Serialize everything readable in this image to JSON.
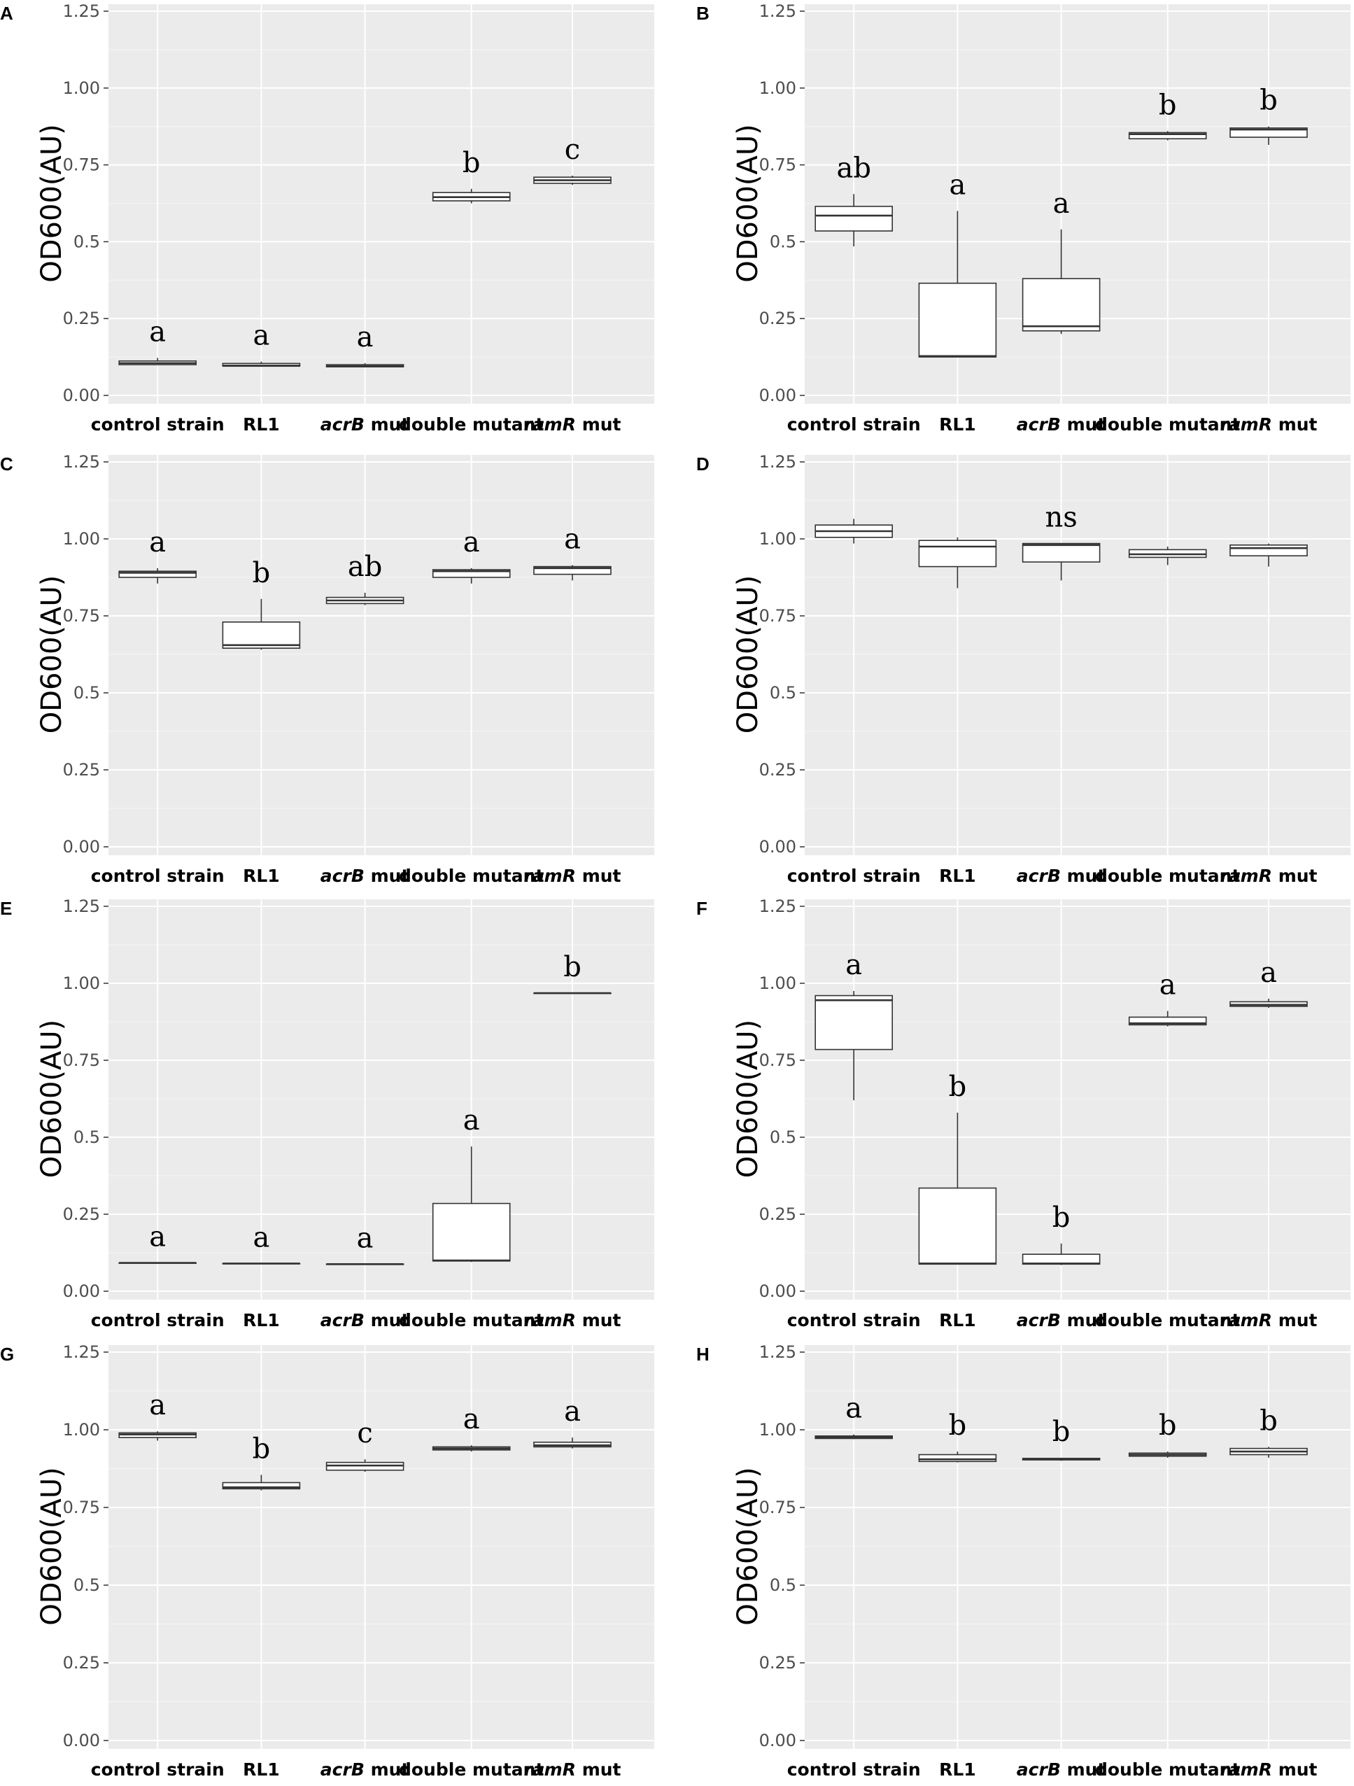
{
  "figure": {
    "ylabel": "OD600(AU)",
    "yticks": [
      "0.00",
      "0.25",
      "0.5",
      "0.75",
      "1.00",
      "1.25"
    ],
    "ylim": [
      0,
      1.25
    ],
    "category_labels": [
      {
        "main": "control strain",
        "italic": ""
      },
      {
        "main": "RL1",
        "italic": ""
      },
      {
        "main": " mut",
        "italic": "acrB"
      },
      {
        "main": "double mutant",
        "italic": ""
      },
      {
        "main": " mut",
        "italic": "ramR"
      }
    ]
  },
  "chart_data": [
    {
      "panel": "A",
      "type": "box",
      "ylabel": "OD600(AU)",
      "ylim": [
        0,
        1.25
      ],
      "categories": [
        "control strain",
        "RL1",
        "acrB mut",
        "double mutant",
        "ramR mut"
      ],
      "boxes": [
        {
          "min": 0.1,
          "q1": 0.1,
          "median": 0.105,
          "q3": 0.112,
          "max": 0.122
        },
        {
          "min": 0.095,
          "q1": 0.095,
          "median": 0.097,
          "q3": 0.104,
          "max": 0.11
        },
        {
          "min": 0.093,
          "q1": 0.093,
          "median": 0.095,
          "q3": 0.1,
          "max": 0.105
        },
        {
          "min": 0.625,
          "q1": 0.633,
          "median": 0.645,
          "q3": 0.66,
          "max": 0.672
        },
        {
          "min": 0.685,
          "q1": 0.69,
          "median": 0.7,
          "q3": 0.71,
          "max": 0.715
        }
      ],
      "significance": [
        "a",
        "a",
        "a",
        "b",
        "c"
      ]
    },
    {
      "panel": "B",
      "type": "box",
      "ylabel": "OD600(AU)",
      "ylim": [
        0,
        1.25
      ],
      "categories": [
        "control strain",
        "RL1",
        "acrB mut",
        "double mutant",
        "ramR mut"
      ],
      "boxes": [
        {
          "min": 0.485,
          "q1": 0.535,
          "median": 0.585,
          "q3": 0.615,
          "max": 0.655
        },
        {
          "min": 0.125,
          "q1": 0.125,
          "median": 0.128,
          "q3": 0.365,
          "max": 0.6
        },
        {
          "min": 0.2,
          "q1": 0.21,
          "median": 0.225,
          "q3": 0.38,
          "max": 0.54
        },
        {
          "min": 0.83,
          "q1": 0.835,
          "median": 0.85,
          "q3": 0.855,
          "max": 0.86
        },
        {
          "min": 0.815,
          "q1": 0.84,
          "median": 0.865,
          "q3": 0.87,
          "max": 0.875
        }
      ],
      "significance": [
        "ab",
        "a",
        "a",
        "b",
        "b"
      ]
    },
    {
      "panel": "C",
      "type": "box",
      "ylabel": "OD600(AU)",
      "ylim": [
        0,
        1.25
      ],
      "categories": [
        "control strain",
        "RL1",
        "acrB mut",
        "double mutant",
        "ramR mut"
      ],
      "boxes": [
        {
          "min": 0.855,
          "q1": 0.875,
          "median": 0.89,
          "q3": 0.895,
          "max": 0.905
        },
        {
          "min": 0.64,
          "q1": 0.645,
          "median": 0.655,
          "q3": 0.73,
          "max": 0.805
        },
        {
          "min": 0.785,
          "q1": 0.79,
          "median": 0.8,
          "q3": 0.81,
          "max": 0.825
        },
        {
          "min": 0.855,
          "q1": 0.875,
          "median": 0.895,
          "q3": 0.9,
          "max": 0.905
        },
        {
          "min": 0.865,
          "q1": 0.885,
          "median": 0.905,
          "q3": 0.91,
          "max": 0.915
        }
      ],
      "significance": [
        "a",
        "b",
        "ab",
        "a",
        "a"
      ]
    },
    {
      "panel": "D",
      "type": "box",
      "ylabel": "OD600(AU)",
      "ylim": [
        0,
        1.25
      ],
      "categories": [
        "control strain",
        "RL1",
        "acrB mut",
        "double mutant",
        "ramR mut"
      ],
      "boxes": [
        {
          "min": 0.985,
          "q1": 1.005,
          "median": 1.025,
          "q3": 1.045,
          "max": 1.065
        },
        {
          "min": 0.84,
          "q1": 0.91,
          "median": 0.975,
          "q3": 0.995,
          "max": 1.005
        },
        {
          "min": 0.865,
          "q1": 0.925,
          "median": 0.98,
          "q3": 0.985,
          "max": 0.985
        },
        {
          "min": 0.915,
          "q1": 0.94,
          "median": 0.95,
          "q3": 0.965,
          "max": 0.975
        },
        {
          "min": 0.91,
          "q1": 0.945,
          "median": 0.97,
          "q3": 0.98,
          "max": 0.985
        }
      ],
      "significance": [
        "",
        "",
        "ns",
        "",
        ""
      ]
    },
    {
      "panel": "E",
      "type": "box",
      "ylabel": "OD600(AU)",
      "ylim": [
        0,
        1.25
      ],
      "categories": [
        "control strain",
        "RL1",
        "acrB mut",
        "double mutant",
        "ramR mut"
      ],
      "boxes": [
        {
          "min": 0.092,
          "q1": 0.092,
          "median": 0.092,
          "q3": 0.092,
          "max": 0.092
        },
        {
          "min": 0.09,
          "q1": 0.09,
          "median": 0.09,
          "q3": 0.09,
          "max": 0.09
        },
        {
          "min": 0.088,
          "q1": 0.088,
          "median": 0.088,
          "q3": 0.088,
          "max": 0.088
        },
        {
          "min": 0.095,
          "q1": 0.098,
          "median": 0.1,
          "q3": 0.285,
          "max": 0.47
        },
        {
          "min": 0.968,
          "q1": 0.968,
          "median": 0.968,
          "q3": 0.968,
          "max": 0.968
        }
      ],
      "significance": [
        "a",
        "a",
        "a",
        "a",
        "b"
      ]
    },
    {
      "panel": "F",
      "type": "box",
      "ylabel": "OD600(AU)",
      "ylim": [
        0,
        1.25
      ],
      "categories": [
        "control strain",
        "RL1",
        "acrB mut",
        "double mutant",
        "ramR mut"
      ],
      "boxes": [
        {
          "min": 0.62,
          "q1": 0.785,
          "median": 0.945,
          "q3": 0.96,
          "max": 0.975
        },
        {
          "min": 0.088,
          "q1": 0.088,
          "median": 0.09,
          "q3": 0.335,
          "max": 0.58
        },
        {
          "min": 0.085,
          "q1": 0.088,
          "median": 0.09,
          "q3": 0.12,
          "max": 0.155
        },
        {
          "min": 0.86,
          "q1": 0.865,
          "median": 0.87,
          "q3": 0.89,
          "max": 0.91
        },
        {
          "min": 0.92,
          "q1": 0.925,
          "median": 0.93,
          "q3": 0.94,
          "max": 0.95
        }
      ],
      "significance": [
        "a",
        "b",
        "b",
        "a",
        "a"
      ]
    },
    {
      "panel": "G",
      "type": "box",
      "ylabel": "OD600(AU)",
      "ylim": [
        0,
        1.25
      ],
      "categories": [
        "control strain",
        "RL1",
        "acrB mut",
        "double mutant",
        "ramR mut"
      ],
      "boxes": [
        {
          "min": 0.965,
          "q1": 0.975,
          "median": 0.985,
          "q3": 0.99,
          "max": 0.995
        },
        {
          "min": 0.805,
          "q1": 0.81,
          "median": 0.815,
          "q3": 0.83,
          "max": 0.855
        },
        {
          "min": 0.865,
          "q1": 0.87,
          "median": 0.885,
          "q3": 0.895,
          "max": 0.905
        },
        {
          "min": 0.93,
          "q1": 0.935,
          "median": 0.94,
          "q3": 0.945,
          "max": 0.95
        },
        {
          "min": 0.94,
          "q1": 0.945,
          "median": 0.95,
          "q3": 0.96,
          "max": 0.975
        }
      ],
      "significance": [
        "a",
        "b",
        "c",
        "a",
        "a"
      ]
    },
    {
      "panel": "H",
      "type": "box",
      "ylabel": "OD600(AU)",
      "ylim": [
        0,
        1.25
      ],
      "categories": [
        "control strain",
        "RL1",
        "acrB mut",
        "double mutant",
        "ramR mut"
      ],
      "boxes": [
        {
          "min": 0.97,
          "q1": 0.972,
          "median": 0.976,
          "q3": 0.98,
          "max": 0.985
        },
        {
          "min": 0.895,
          "q1": 0.898,
          "median": 0.905,
          "q3": 0.92,
          "max": 0.93
        },
        {
          "min": 0.9,
          "q1": 0.903,
          "median": 0.905,
          "q3": 0.908,
          "max": 0.91
        },
        {
          "min": 0.91,
          "q1": 0.915,
          "median": 0.92,
          "q3": 0.925,
          "max": 0.93
        },
        {
          "min": 0.91,
          "q1": 0.92,
          "median": 0.93,
          "q3": 0.94,
          "max": 0.945
        }
      ],
      "significance": [
        "a",
        "b",
        "b",
        "b",
        "b"
      ]
    }
  ]
}
